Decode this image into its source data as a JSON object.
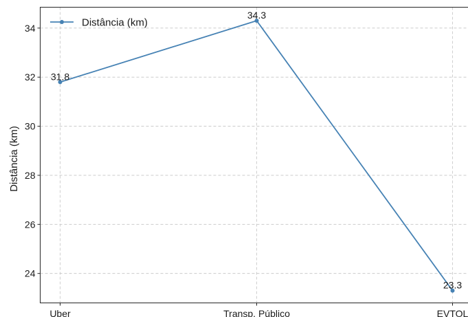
{
  "chart_data": {
    "type": "line",
    "categories": [
      "Uber",
      "Transp. Público",
      "EVTOL"
    ],
    "series": [
      {
        "name": "Distância (km)",
        "values": [
          31.8,
          34.3,
          23.3
        ]
      }
    ],
    "data_labels": [
      "31.8",
      "34.3",
      "23.3"
    ],
    "title": "",
    "xlabel": "",
    "ylabel": "Distância (km)",
    "ylim": [
      22.8,
      34.85
    ],
    "yticks": [
      24,
      26,
      28,
      30,
      32,
      34
    ],
    "ytick_labels": [
      "24",
      "26",
      "28",
      "30",
      "32",
      "34"
    ],
    "grid": true,
    "legend_position": "top-left",
    "line_color": "#4682b4"
  }
}
